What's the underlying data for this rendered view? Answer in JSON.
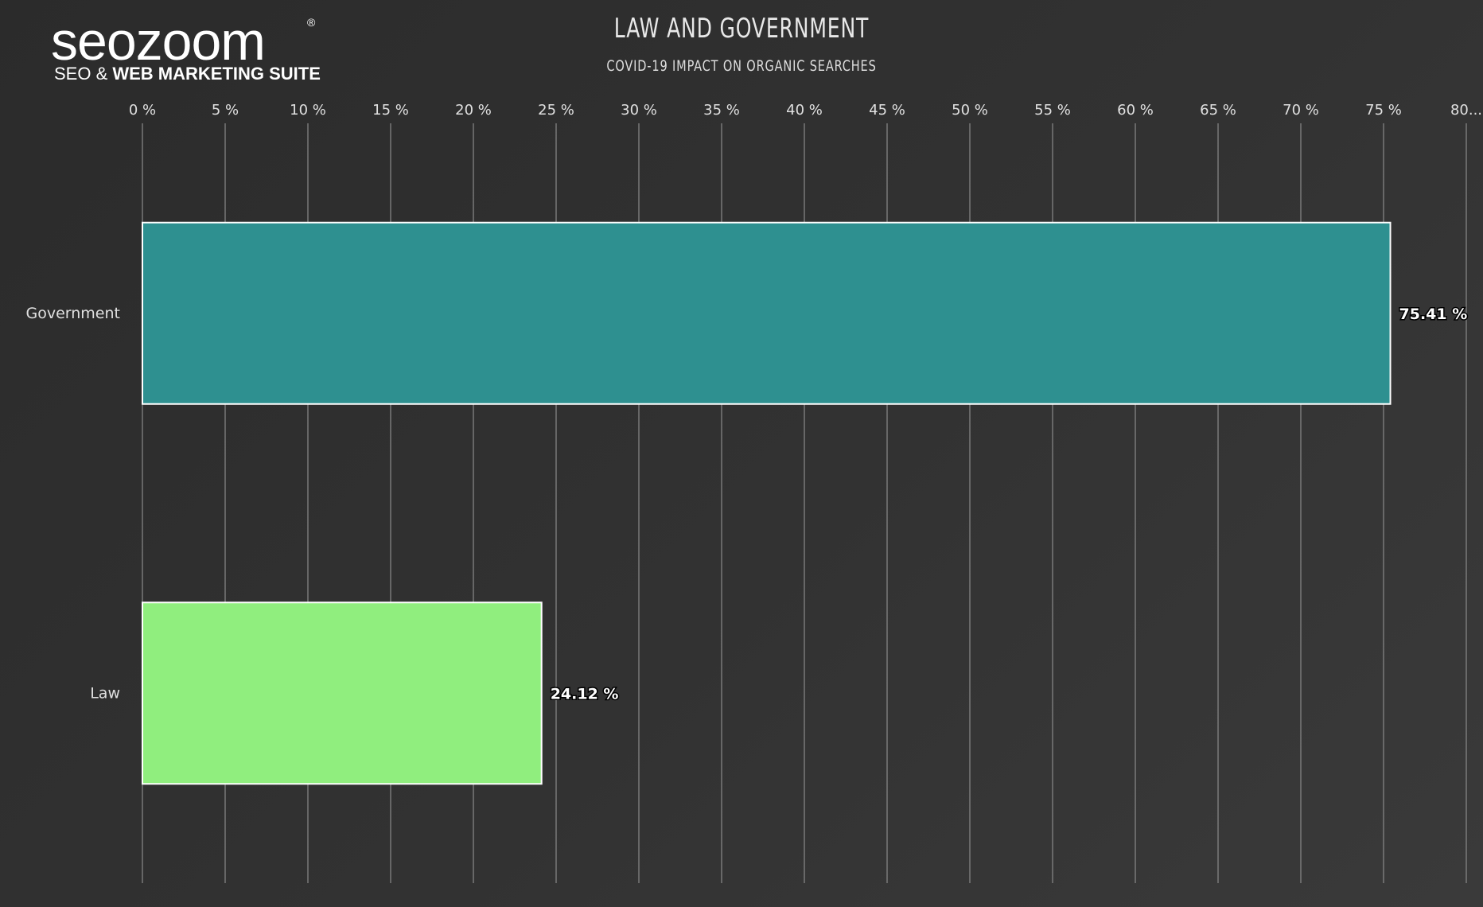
{
  "logo": {
    "wordmark": "seozoom",
    "registered": "®",
    "tagline_prefix": "SEO & ",
    "tagline_bold": "WEB MARKETING SUITE"
  },
  "chart_data": {
    "type": "bar",
    "orientation": "horizontal",
    "title": "LAW AND GOVERNMENT",
    "subtitle": "COVID-19 IMPACT ON ORGANIC SEARCHES",
    "categories": [
      "Government",
      "Law"
    ],
    "values": [
      75.41,
      24.12
    ],
    "value_labels": [
      "75.41 %",
      "24.12 %"
    ],
    "colors": [
      "#2e9090",
      "#90ee7e"
    ],
    "xlim": [
      0,
      80
    ],
    "x_ticks": [
      0,
      5,
      10,
      15,
      20,
      25,
      30,
      35,
      40,
      45,
      50,
      55,
      60,
      65,
      70,
      75,
      80
    ],
    "x_tick_labels": [
      "0 %",
      "5 %",
      "10 %",
      "15 %",
      "20 %",
      "25 %",
      "30 %",
      "35 %",
      "40 %",
      "45 %",
      "50 %",
      "55 %",
      "60 %",
      "65 %",
      "70 %",
      "75 %",
      "80..."
    ],
    "grid": true,
    "axis_position": "top",
    "grid_color": "#8a8a8a"
  }
}
